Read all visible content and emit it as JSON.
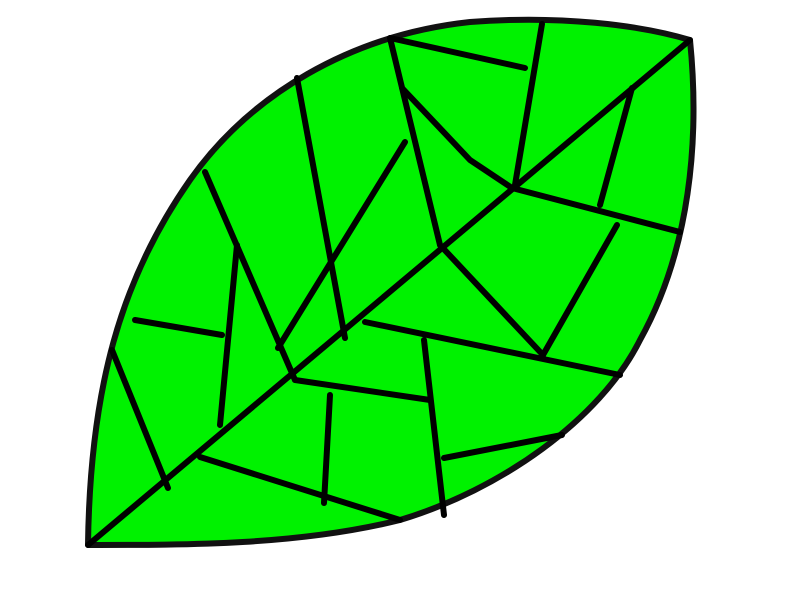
{
  "scene": {
    "subject": "leaf",
    "background_color": "#ffffff",
    "leaf_fill_color": "#00f200",
    "vein_color": "#000000",
    "outline_color": "#111111"
  }
}
